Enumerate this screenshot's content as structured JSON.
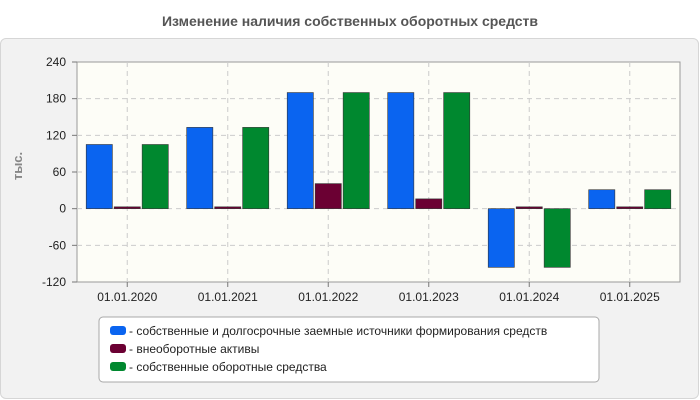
{
  "chart_data": {
    "type": "bar",
    "title": "Изменение наличия собственных оборотных средств",
    "ylabel": "тыс.",
    "xlabel": "",
    "ylim": [
      -120,
      240
    ],
    "yticks": [
      -120,
      -60,
      0,
      60,
      120,
      180,
      240
    ],
    "grid": true,
    "legend_position": "bottom",
    "categories": [
      "01.01.2020",
      "01.01.2021",
      "01.01.2022",
      "01.01.2023",
      "01.01.2024",
      "01.01.2025"
    ],
    "series": [
      {
        "name": "- собственные и долгосрочные заемные источники формирования средств",
        "color": "#0a64f0",
        "values": [
          105,
          133,
          190,
          190,
          -96,
          31
        ]
      },
      {
        "name": "- внеоборотные активы",
        "color": "#6b0033",
        "values": [
          3,
          3,
          41,
          16,
          3,
          3
        ]
      },
      {
        "name": "- собственные оборотные средства",
        "color": "#00882f",
        "values": [
          105,
          133,
          190,
          190,
          -96,
          31
        ]
      }
    ]
  }
}
